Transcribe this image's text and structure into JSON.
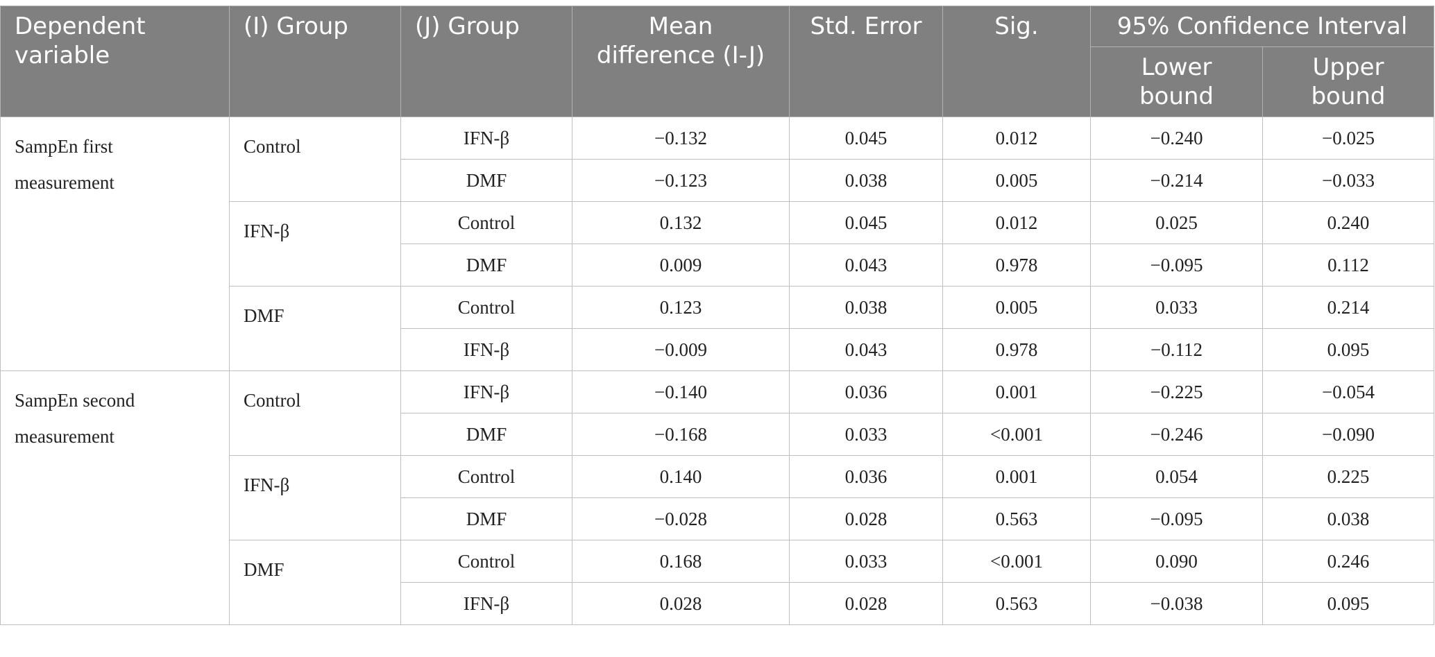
{
  "header": {
    "dependent_variable": "Dependent variable",
    "i_group": "(I) Group",
    "j_group": "(J) Group",
    "mean_difference": "Mean difference (I-J)",
    "std_error": "Std. Error",
    "sig": "Sig.",
    "confidence_interval": "95% Confidence Interval",
    "lower_bound": "Lower bound",
    "upper_bound": "Upper bound"
  },
  "blocks": [
    {
      "dependent_variable": "SampEn first measurement",
      "groups": [
        {
          "i_group": "Control",
          "rows": [
            {
              "j_group": "IFN-β",
              "mean_difference": "−0.132",
              "std_error": "0.045",
              "sig": "0.012",
              "lower": "−0.240",
              "upper": "−0.025"
            },
            {
              "j_group": "DMF",
              "mean_difference": "−0.123",
              "std_error": "0.038",
              "sig": "0.005",
              "lower": "−0.214",
              "upper": "−0.033"
            }
          ]
        },
        {
          "i_group": "IFN-β",
          "rows": [
            {
              "j_group": "Control",
              "mean_difference": "0.132",
              "std_error": "0.045",
              "sig": "0.012",
              "lower": "0.025",
              "upper": "0.240"
            },
            {
              "j_group": "DMF",
              "mean_difference": "0.009",
              "std_error": "0.043",
              "sig": "0.978",
              "lower": "−0.095",
              "upper": "0.112"
            }
          ]
        },
        {
          "i_group": "DMF",
          "rows": [
            {
              "j_group": "Control",
              "mean_difference": "0.123",
              "std_error": "0.038",
              "sig": "0.005",
              "lower": "0.033",
              "upper": "0.214"
            },
            {
              "j_group": "IFN-β",
              "mean_difference": "−0.009",
              "std_error": "0.043",
              "sig": "0.978",
              "lower": "−0.112",
              "upper": "0.095"
            }
          ]
        }
      ]
    },
    {
      "dependent_variable": "SampEn second measurement",
      "groups": [
        {
          "i_group": "Control",
          "rows": [
            {
              "j_group": "IFN-β",
              "mean_difference": "−0.140",
              "std_error": "0.036",
              "sig": "0.001",
              "lower": "−0.225",
              "upper": "−0.054"
            },
            {
              "j_group": "DMF",
              "mean_difference": "−0.168",
              "std_error": "0.033",
              "sig": "<0.001",
              "lower": "−0.246",
              "upper": "−0.090"
            }
          ]
        },
        {
          "i_group": "IFN-β",
          "rows": [
            {
              "j_group": "Control",
              "mean_difference": "0.140",
              "std_error": "0.036",
              "sig": "0.001",
              "lower": "0.054",
              "upper": "0.225"
            },
            {
              "j_group": "DMF",
              "mean_difference": "−0.028",
              "std_error": "0.028",
              "sig": "0.563",
              "lower": "−0.095",
              "upper": "0.038"
            }
          ]
        },
        {
          "i_group": "DMF",
          "rows": [
            {
              "j_group": "Control",
              "mean_difference": "0.168",
              "std_error": "0.033",
              "sig": "<0.001",
              "lower": "0.090",
              "upper": "0.246"
            },
            {
              "j_group": "IFN-β",
              "mean_difference": "0.028",
              "std_error": "0.028",
              "sig": "0.563",
              "lower": "−0.038",
              "upper": "0.095"
            }
          ]
        }
      ]
    }
  ]
}
